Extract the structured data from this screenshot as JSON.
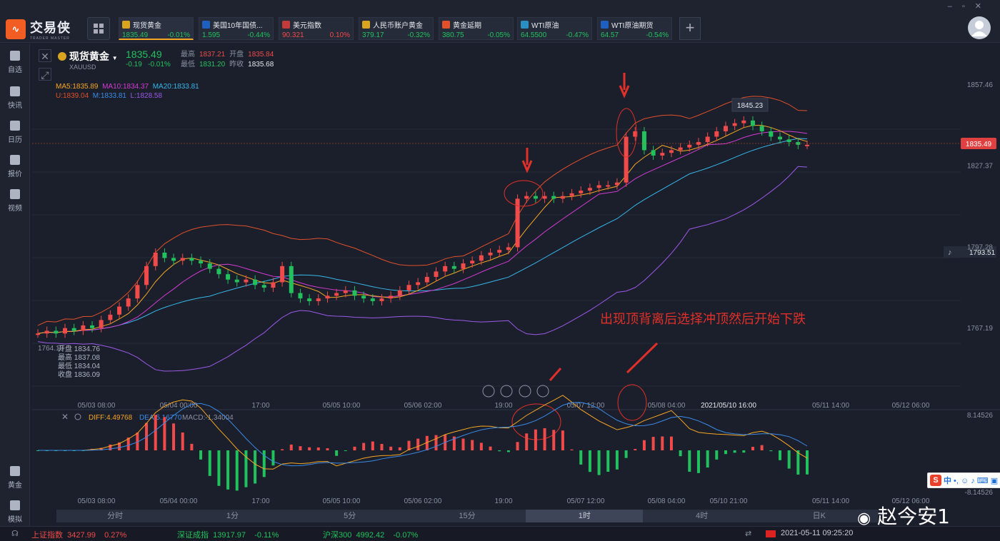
{
  "app": {
    "name": "交易侠",
    "sub": "TRADER MASTER"
  },
  "tickers": [
    {
      "name": "现货黄金",
      "price": "1835.49",
      "chg": "-0.01%",
      "color": "#d9a520",
      "dir": "dn"
    },
    {
      "name": "美国10年国债...",
      "price": "1.595",
      "chg": "-0.44%",
      "color": "#1f5fbf",
      "dir": "dn"
    },
    {
      "name": "美元指数",
      "price": "90.321",
      "chg": "0.10%",
      "color": "#c23b3b",
      "dir": "up"
    },
    {
      "name": "人民币账户黄金",
      "price": "379.17",
      "chg": "-0.32%",
      "color": "#d9a520",
      "dir": "dn"
    },
    {
      "name": "黄金延期",
      "price": "380.75",
      "chg": "-0.05%",
      "color": "#e0502a",
      "dir": "dn"
    },
    {
      "name": "WTI原油",
      "price": "64.5500",
      "chg": "-0.47%",
      "color": "#2a8fc0",
      "dir": "dn"
    },
    {
      "name": "WTI原油期货",
      "price": "64.57",
      "chg": "-0.54%",
      "color": "#1f5fbf",
      "dir": "dn"
    }
  ],
  "nav": [
    "自选",
    "快讯",
    "日历",
    "报价",
    "视频",
    "黄金",
    "模拟"
  ],
  "symbol": {
    "name": "现货黄金",
    "code": "XAUUSD",
    "price": "1835.49",
    "chg": "-0.19",
    "pct": "-0.01%"
  },
  "ohlc": {
    "high_l": "最高",
    "high": "1837.21",
    "open_l": "开盘",
    "open": "1835.84",
    "low_l": "最低",
    "low": "1831.20",
    "prev_l": "昨收",
    "prev": "1835.68"
  },
  "ma": {
    "ma5": "MA5:1835.89",
    "ma10": "MA10:1834.37",
    "ma20": "MA20:1833.81",
    "u": "U:1839.04",
    "m": "M:1833.81",
    "l": "L:1828.58"
  },
  "yaxis": [
    "1857.46",
    "1827.37",
    "1797.28",
    "1767.19"
  ],
  "ylabel_current": "1835.49",
  "ylabel_alert": "1793.51",
  "peak_label": "1845.23",
  "left_price": "1764.13",
  "tooltip": {
    "open": "开盘 1834.76",
    "high": "最高 1837.08",
    "low": "最低 1834.04",
    "close": "收盘 1836.09"
  },
  "xaxis": [
    "05/03 08:00",
    "05/04 00:00",
    "17:00",
    "05/05 10:00",
    "05/06 02:00",
    "19:00",
    "05/07 12:00",
    "05/08 04:00",
    "2021/05/10 16:00",
    "05/11 14:00",
    "05/12 06:00"
  ],
  "xaxis2": [
    "05/03 08:00",
    "05/04 00:00",
    "17:00",
    "05/05 10:00",
    "05/06 02:00",
    "19:00",
    "05/07 12:00",
    "05/08 04:00",
    "05/10 21:00",
    "05/11 14:00",
    "05/12 06:00"
  ],
  "annotation": "出现顶背离后选择冲顶然后开始下跌",
  "macd": {
    "diff": "DIFF:4.49768",
    "dea": "DEA:5.16770",
    "macd": "MACD:-1.34004",
    "top": "8.14526",
    "bottom": "-8.14526"
  },
  "periods": [
    "分时",
    "1分",
    "5分",
    "15分",
    "1时",
    "4时",
    "日K"
  ],
  "status": [
    {
      "name": "上证指数",
      "val": "3427.99",
      "pct": "0.27%",
      "dir": "up"
    },
    {
      "name": "深证成指",
      "val": "13917.97",
      "pct": "-0.11%",
      "dir": "dn"
    },
    {
      "name": "沪深300",
      "val": "4992.42",
      "pct": "-0.07%",
      "dir": "dn"
    }
  ],
  "datetime": "2021-05-11  09:25:20",
  "watermark": "赵今安1",
  "chart_data": {
    "type": "line",
    "candles": [
      1765,
      1766,
      1765,
      1767,
      1766,
      1768,
      1767,
      1770,
      1772,
      1775,
      1778,
      1783,
      1790,
      1795,
      1793,
      1792,
      1793,
      1792,
      1791,
      1789,
      1787,
      1785,
      1784,
      1785,
      1783,
      1782,
      1784,
      1790,
      1780,
      1778,
      1777,
      1778,
      1779,
      1780,
      1781,
      1779,
      1778,
      1777,
      1778,
      1779,
      1781,
      1783,
      1784,
      1786,
      1788,
      1790,
      1789,
      1791,
      1792,
      1794,
      1795,
      1796,
      1797,
      1815,
      1816,
      1815,
      1816,
      1815,
      1816,
      1817,
      1818,
      1819,
      1820,
      1820,
      1821,
      1838,
      1840,
      1833,
      1831,
      1832,
      1833,
      1834,
      1835,
      1836,
      1838,
      1840,
      1842,
      1843,
      1844,
      1842,
      1840,
      1838,
      1837,
      1836,
      1835,
      1835
    ]
  }
}
